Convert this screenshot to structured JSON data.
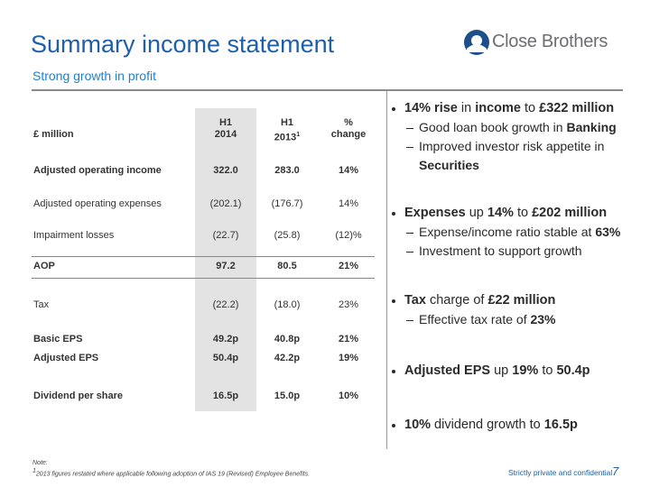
{
  "header": {
    "title": "Summary income statement",
    "subtitle": "Strong growth in profit",
    "logo": "Close Brothers"
  },
  "table": {
    "columns": [
      {
        "lines": [
          "£ million"
        ]
      },
      {
        "lines": [
          "H1",
          "2014"
        ],
        "shaded": true
      },
      {
        "lines": [
          "H1",
          "2013"
        ],
        "marker": "1"
      },
      {
        "lines": [
          "%",
          "change"
        ]
      }
    ],
    "rows": [
      {
        "label": "Adjusted operating income",
        "values": [
          "322.0",
          "283.0",
          "14%"
        ],
        "bold": true
      },
      {
        "label": "Adjusted operating expenses",
        "values": [
          "(202.1)",
          "(176.7)",
          "14%"
        ],
        "bold": false
      },
      {
        "label": "Impairment losses",
        "values": [
          "(22.7)",
          "(25.8)",
          "(12)%"
        ],
        "bold": false
      },
      {
        "label": "AOP",
        "values": [
          "97.2",
          "80.5",
          "21%"
        ],
        "bold": true,
        "ruled": true
      },
      {
        "label": "Tax",
        "values": [
          "(22.2)",
          "(18.0)",
          "23%"
        ],
        "bold": false
      },
      {
        "label": "Basic EPS",
        "values": [
          "49.2p",
          "40.8p",
          "21%"
        ],
        "bold": true
      },
      {
        "label": "Adjusted EPS",
        "values": [
          "50.4p",
          "42.2p",
          "19%"
        ],
        "bold": true
      },
      {
        "label": "Dividend per share",
        "values": [
          "16.5p",
          "15.0p",
          "10%"
        ],
        "bold": true
      }
    ]
  },
  "bullets": [
    {
      "runs": [
        {
          "text": "14% rise",
          "bold": true
        },
        {
          "text": " in ",
          "bold": false
        },
        {
          "text": "income",
          "bold": true
        },
        {
          "text": " to ",
          "bold": false
        },
        {
          "text": "£322 million",
          "bold": true
        }
      ],
      "subs": [
        [
          {
            "text": "Good loan book growth in ",
            "bold": false
          },
          {
            "text": "Banking",
            "bold": true
          }
        ],
        [
          {
            "text": "Improved investor risk appetite in ",
            "bold": false
          },
          {
            "text": "Securities",
            "bold": true
          }
        ]
      ]
    },
    {
      "runs": [
        {
          "text": "Expenses",
          "bold": true
        },
        {
          "text": " up ",
          "bold": false
        },
        {
          "text": "14%",
          "bold": true
        },
        {
          "text": " to ",
          "bold": false
        },
        {
          "text": "£202 million",
          "bold": true
        }
      ],
      "subs": [
        [
          {
            "text": "Expense/income ratio stable at ",
            "bold": false
          },
          {
            "text": "63%",
            "bold": true
          }
        ],
        [
          {
            "text": "Investment to support growth",
            "bold": false
          }
        ]
      ]
    },
    {
      "runs": [
        {
          "text": "Tax",
          "bold": true
        },
        {
          "text": " charge of ",
          "bold": false
        },
        {
          "text": "£22 million",
          "bold": true
        }
      ],
      "subs": [
        [
          {
            "text": "Effective tax rate of ",
            "bold": false
          },
          {
            "text": "23%",
            "bold": true
          }
        ]
      ]
    },
    {
      "runs": [
        {
          "text": "Adjusted EPS",
          "bold": true
        },
        {
          "text": " up ",
          "bold": false
        },
        {
          "text": "19%",
          "bold": true
        },
        {
          "text": " to ",
          "bold": false
        },
        {
          "text": "50.4p",
          "bold": true
        }
      ],
      "subs": []
    },
    {
      "runs": [
        {
          "text": "10%",
          "bold": true
        },
        {
          "text": " dividend growth to ",
          "bold": false
        },
        {
          "text": "16.5p",
          "bold": true
        }
      ],
      "subs": []
    }
  ],
  "footer": {
    "note_title": "Note:",
    "note_marker": "1",
    "note": "2013 figures restated where applicable following adoption of IAS 19 (Revised) Employee Benefits.",
    "confidential": "Strictly private and confidential",
    "page": "7"
  }
}
